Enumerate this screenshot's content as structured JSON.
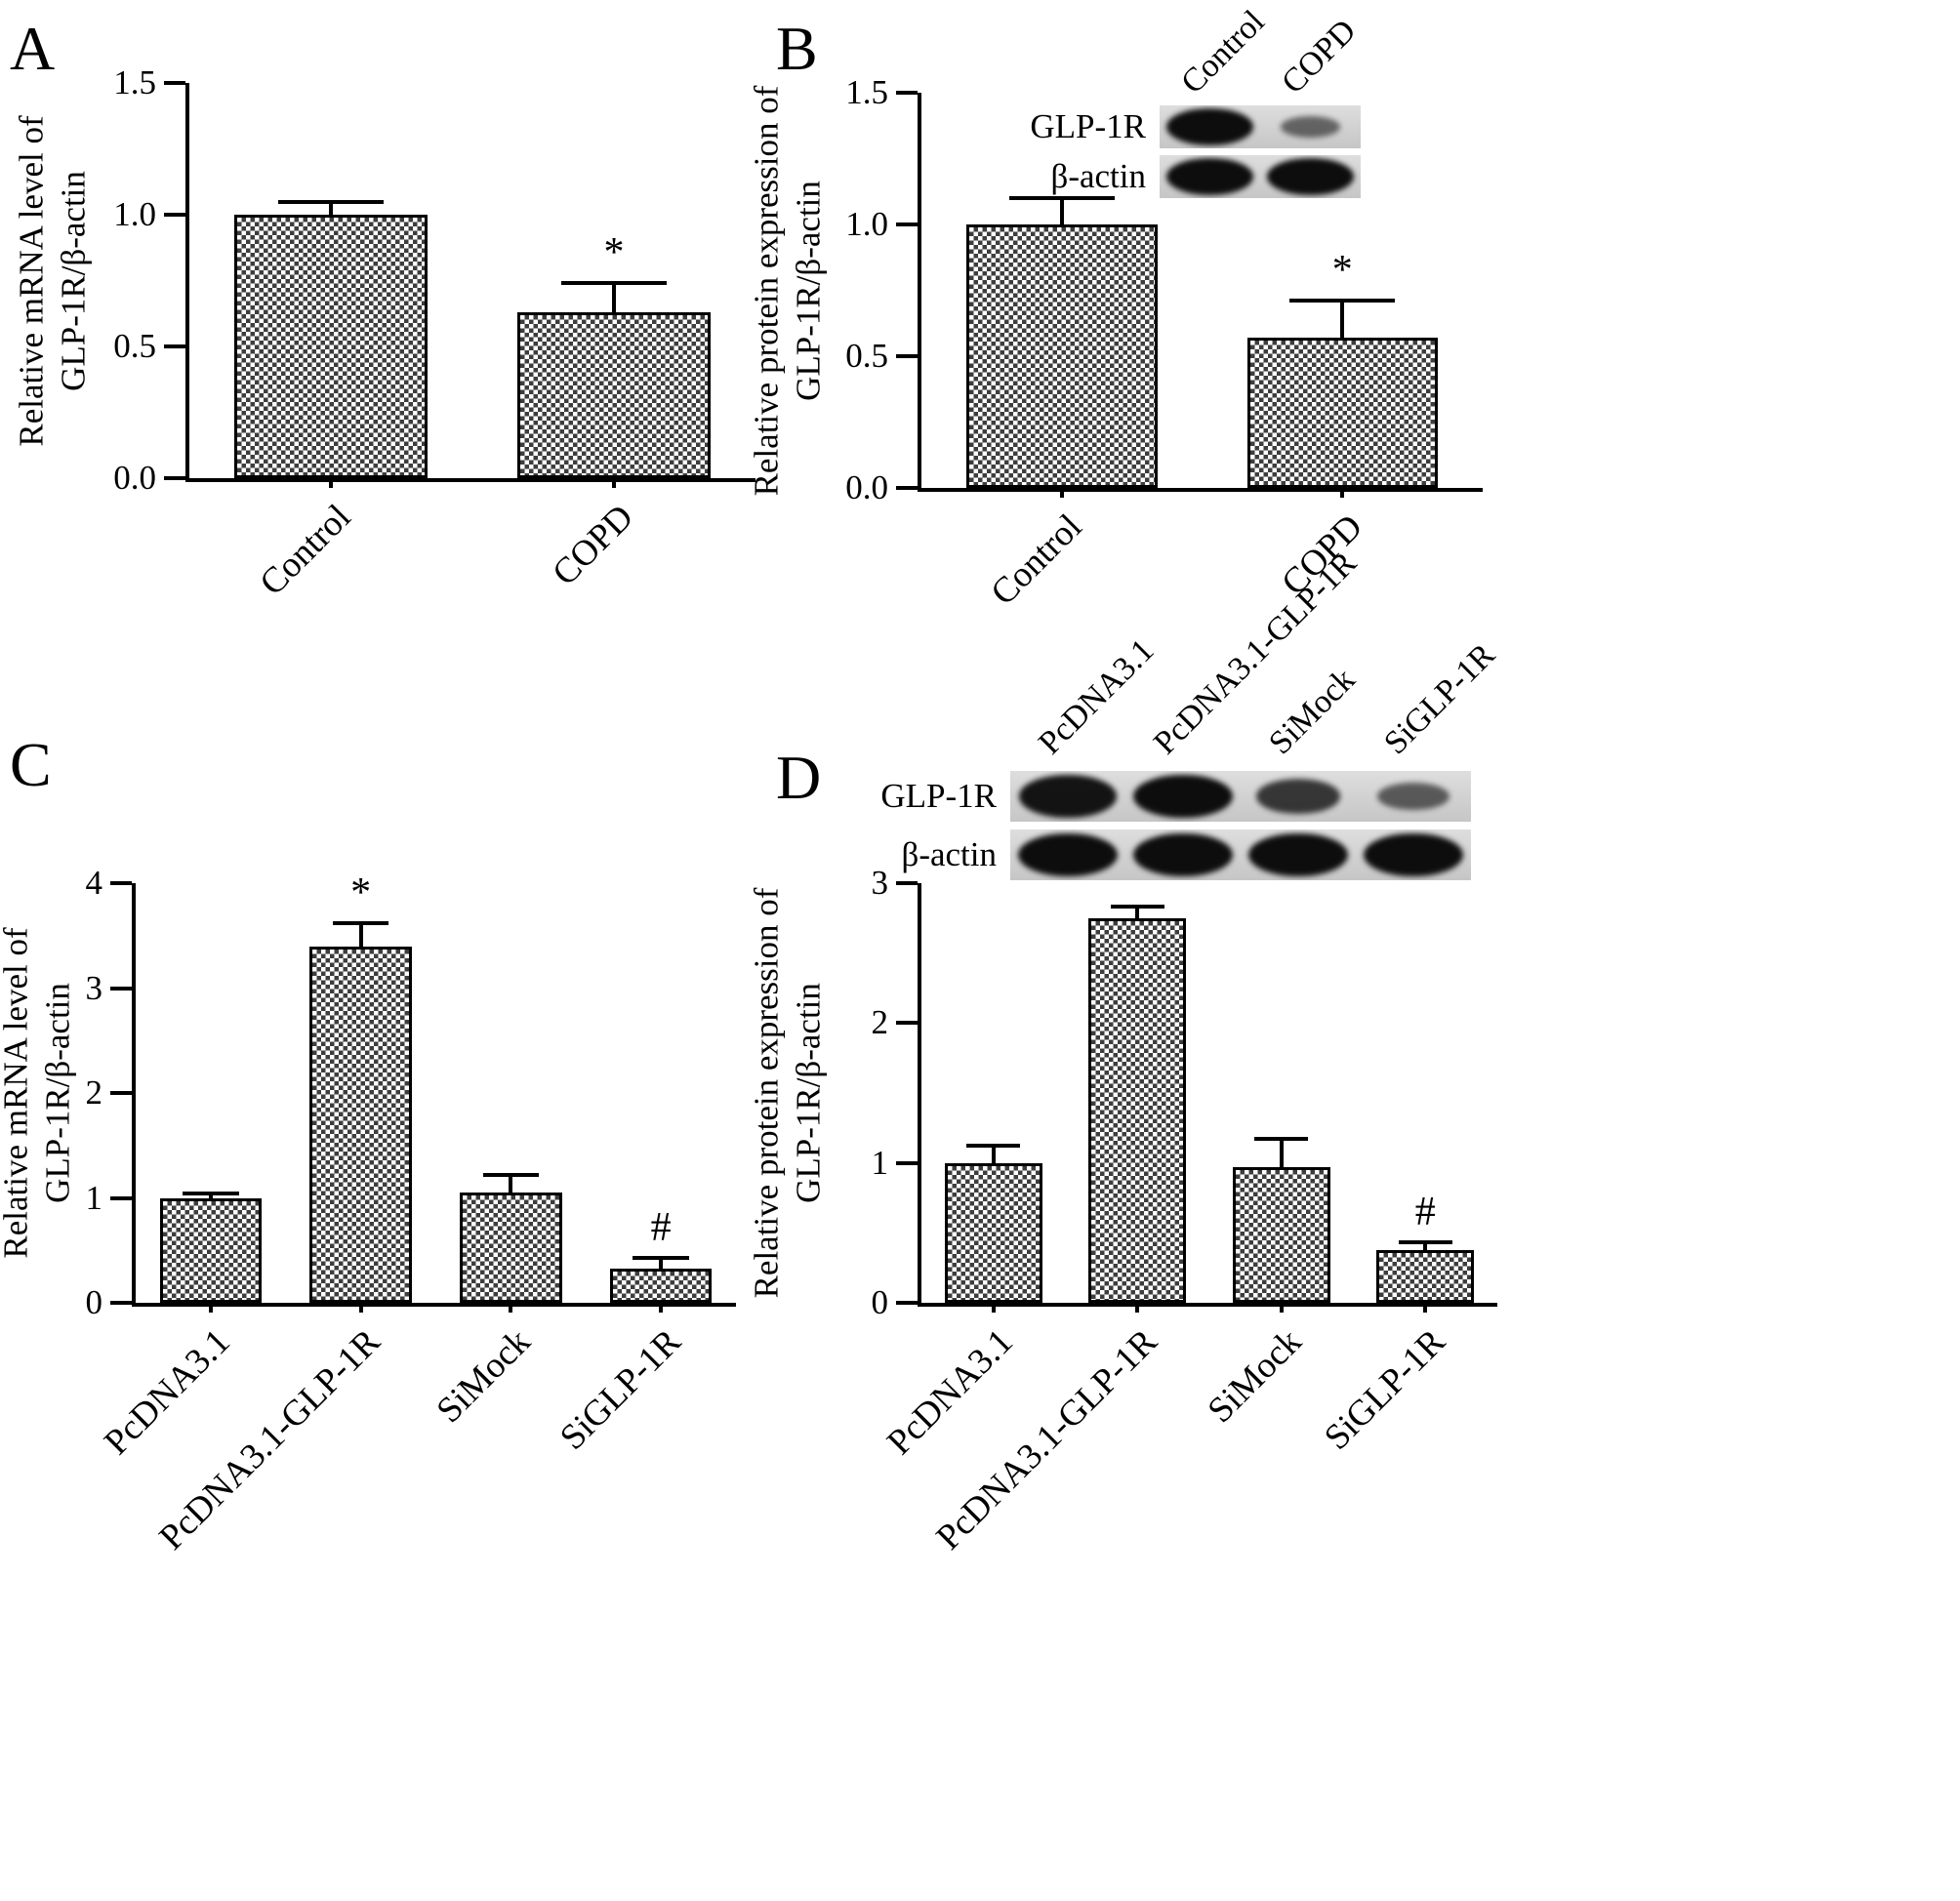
{
  "figure": {
    "background": "#ffffff",
    "ink": "#000000",
    "significance_markers": {
      "vs_control": "*",
      "knockdown": "#"
    }
  },
  "chart_data": [
    {
      "panel": "A",
      "type": "bar",
      "title": "",
      "xlabel": "",
      "ylabel": "Relative mRNA level of GLP-1R/β-actin",
      "ylabel_lines": [
        "Relative mRNA level of",
        "GLP-1R/β-actin"
      ],
      "categories": [
        "Control",
        "COPD"
      ],
      "values": [
        1.0,
        0.63
      ],
      "errors": [
        0.05,
        0.11
      ],
      "annotations": [
        "",
        "*"
      ],
      "ylim": [
        0,
        1.5
      ],
      "yticks": [
        {
          "v": 0.0,
          "label": "0.0"
        },
        {
          "v": 0.5,
          "label": "0.5"
        },
        {
          "v": 1.0,
          "label": "1.0"
        },
        {
          "v": 1.5,
          "label": "1.5"
        }
      ],
      "grid": false,
      "legend": null,
      "bar_fill": "checker-hatch"
    },
    {
      "panel": "B",
      "type": "bar",
      "title": "",
      "xlabel": "",
      "ylabel": "Relative protein expression of GLP-1R/β-actin",
      "ylabel_lines": [
        "Relative protein expression of",
        "GLP-1R/β-actin"
      ],
      "categories": [
        "Control",
        "COPD"
      ],
      "values": [
        1.0,
        0.57
      ],
      "errors": [
        0.1,
        0.14
      ],
      "annotations": [
        "",
        "*"
      ],
      "ylim": [
        0,
        1.5
      ],
      "yticks": [
        {
          "v": 0.0,
          "label": "0.0"
        },
        {
          "v": 0.5,
          "label": "0.5"
        },
        {
          "v": 1.0,
          "label": "1.0"
        },
        {
          "v": 1.5,
          "label": "1.5"
        }
      ],
      "grid": false,
      "legend": null,
      "bar_fill": "checker-hatch",
      "blot": {
        "lanes": [
          "Control",
          "COPD"
        ],
        "rows": [
          {
            "label": "GLP-1R",
            "intensities": [
              1.0,
              0.38
            ]
          },
          {
            "label": "β-actin",
            "intensities": [
              1.0,
              1.0
            ]
          }
        ]
      }
    },
    {
      "panel": "C",
      "type": "bar",
      "title": "",
      "xlabel": "",
      "ylabel": "Relative mRNA level of GLP-1R/β-actin",
      "ylabel_lines": [
        "Relative mRNA level of",
        "GLP-1R/β-actin"
      ],
      "categories": [
        "PcDNA3.1",
        "PcDNA3.1-GLP-1R",
        "SiMock",
        "SiGLP-1R"
      ],
      "values": [
        1.0,
        3.4,
        1.05,
        0.33
      ],
      "errors": [
        0.04,
        0.22,
        0.17,
        0.1
      ],
      "annotations": [
        "",
        "*",
        "",
        "#"
      ],
      "ylim": [
        0,
        4
      ],
      "yticks": [
        {
          "v": 0,
          "label": "0"
        },
        {
          "v": 1,
          "label": "1"
        },
        {
          "v": 2,
          "label": "2"
        },
        {
          "v": 3,
          "label": "3"
        },
        {
          "v": 4,
          "label": "4"
        }
      ],
      "grid": false,
      "legend": null,
      "bar_fill": "checker-hatch"
    },
    {
      "panel": "D",
      "type": "bar",
      "title": "",
      "xlabel": "",
      "ylabel": "Relative protein expression of GLP-1R/β-actin",
      "ylabel_lines": [
        "Relative protein expression of",
        "GLP-1R/β-actin"
      ],
      "categories": [
        "PcDNA3.1",
        "PcDNA3.1-GLP-1R",
        "SiMock",
        "SiGLP-1R"
      ],
      "values": [
        1.0,
        2.75,
        0.97,
        0.38
      ],
      "errors": [
        0.12,
        0.08,
        0.2,
        0.05
      ],
      "annotations": [
        "",
        "*",
        "",
        "#"
      ],
      "ylim": [
        0,
        3
      ],
      "yticks": [
        {
          "v": 0,
          "label": "0"
        },
        {
          "v": 1,
          "label": "1"
        },
        {
          "v": 2,
          "label": "2"
        },
        {
          "v": 3,
          "label": "3"
        }
      ],
      "grid": false,
      "legend": null,
      "bar_fill": "checker-hatch",
      "blot": {
        "lanes": [
          "PcDNA3.1",
          "PcDNA3.1-GLP-1R",
          "SiMock",
          "SiGLP-1R"
        ],
        "rows": [
          {
            "label": "GLP-1R",
            "intensities": [
              0.95,
              1.0,
              0.7,
              0.45
            ]
          },
          {
            "label": "β-actin",
            "intensities": [
              1.0,
              1.0,
              1.0,
              1.0
            ]
          }
        ]
      }
    }
  ]
}
